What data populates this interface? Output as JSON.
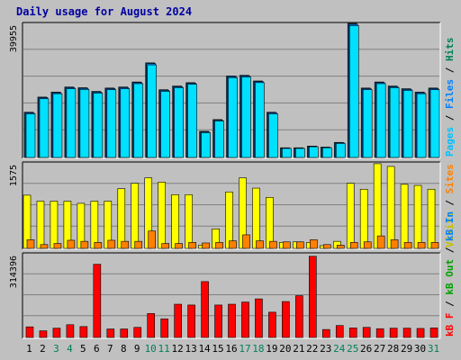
{
  "title": "Daily usage for August 2024",
  "colors": {
    "background": "#c0c0c0",
    "panel": "#c0c0c0",
    "hits": "#00c0ff",
    "files": "#0080ff",
    "pages": "#00e0ff",
    "visits": "#ffff00",
    "sites": "#ff8000",
    "kbin": "#0080ff",
    "kbout": "#00a000",
    "kbf": "#ff0000",
    "title": "#0000a0",
    "weekend_label": "#00805a",
    "weekday_label": "#000000"
  },
  "chart_data": [
    {
      "type": "bar",
      "panel": "hits_files_pages",
      "y_max_label": "39955",
      "ylim": [
        0,
        39955
      ],
      "right_labels": [
        {
          "text": "Pages",
          "color": "#00c0ff"
        },
        {
          "text": " / ",
          "color": "#000000"
        },
        {
          "text": "Files",
          "color": "#0080ff"
        },
        {
          "text": " / ",
          "color": "#000000"
        },
        {
          "text": "Hits",
          "color": "#00805a"
        }
      ],
      "categories": [
        "1",
        "2",
        "3",
        "4",
        "5",
        "6",
        "7",
        "8",
        "9",
        "10",
        "11",
        "12",
        "13",
        "14",
        "15",
        "16",
        "17",
        "18",
        "19",
        "20",
        "21",
        "22",
        "23",
        "24",
        "25",
        "26",
        "27",
        "28",
        "29",
        "30",
        "31"
      ],
      "series": [
        {
          "name": "Hits",
          "values": [
            13500,
            18000,
            19500,
            21000,
            20800,
            19700,
            20700,
            21000,
            22500,
            28200,
            20200,
            21300,
            22300,
            7800,
            11300,
            24300,
            24500,
            22800,
            13500,
            2900,
            2900,
            3400,
            3100,
            4500,
            39955,
            20700,
            22500,
            21300,
            20500,
            19500,
            20700
          ]
        },
        {
          "name": "Files",
          "values": [
            13300,
            17800,
            19300,
            20800,
            20600,
            19500,
            20500,
            20800,
            22300,
            28000,
            20000,
            21100,
            22100,
            7600,
            11100,
            24100,
            24300,
            22600,
            13300,
            2800,
            2800,
            3300,
            3000,
            4400,
            39700,
            20500,
            22300,
            21100,
            20300,
            19300,
            20500
          ]
        },
        {
          "name": "Pages",
          "values": [
            13000,
            17500,
            19000,
            20500,
            20300,
            19200,
            20200,
            20500,
            22000,
            27600,
            19700,
            20800,
            21800,
            7400,
            10900,
            23800,
            24000,
            22300,
            13000,
            2700,
            2700,
            3200,
            2900,
            4200,
            39300,
            20200,
            22000,
            20800,
            20000,
            19000,
            20200
          ]
        }
      ]
    },
    {
      "type": "bar",
      "panel": "visits_sites",
      "y_max_label": "1575",
      "ylim": [
        0,
        1575
      ],
      "right_labels": [
        {
          "text": "Visits",
          "color": "#c0c000"
        },
        {
          "text": " / ",
          "color": "#000000"
        },
        {
          "text": "Sites",
          "color": "#ff8000"
        }
      ],
      "categories": [
        "1",
        "2",
        "3",
        "4",
        "5",
        "6",
        "7",
        "8",
        "9",
        "10",
        "11",
        "12",
        "13",
        "14",
        "15",
        "16",
        "17",
        "18",
        "19",
        "20",
        "21",
        "22",
        "23",
        "24",
        "25",
        "26",
        "27",
        "28",
        "29",
        "30",
        "31"
      ],
      "series": [
        {
          "name": "Visits",
          "values": [
            980,
            870,
            870,
            870,
            830,
            870,
            870,
            1100,
            1200,
            1300,
            1220,
            990,
            990,
            60,
            360,
            1040,
            1300,
            1110,
            940,
            110,
            120,
            110,
            50,
            130,
            1200,
            1090,
            1560,
            1510,
            1180,
            1160,
            1090
          ]
        },
        {
          "name": "Sites",
          "values": [
            160,
            70,
            90,
            150,
            130,
            110,
            150,
            130,
            130,
            320,
            90,
            90,
            110,
            100,
            110,
            140,
            250,
            140,
            130,
            120,
            120,
            160,
            70,
            60,
            110,
            120,
            230,
            160,
            110,
            110,
            110
          ]
        }
      ]
    },
    {
      "type": "bar",
      "panel": "kbytes",
      "y_max_label": "314396",
      "ylim": [
        0,
        314396
      ],
      "right_labels": [
        {
          "text": "kB F",
          "color": "#ff0000"
        },
        {
          "text": " / ",
          "color": "#000000"
        },
        {
          "text": "kB Out",
          "color": "#00a000"
        },
        {
          "text": " / ",
          "color": "#000000"
        },
        {
          "text": "kB In",
          "color": "#0080ff"
        }
      ],
      "categories": [
        "1",
        "2",
        "3",
        "4",
        "5",
        "6",
        "7",
        "8",
        "9",
        "10",
        "11",
        "12",
        "13",
        "14",
        "15",
        "16",
        "17",
        "18",
        "19",
        "20",
        "21",
        "22",
        "23",
        "24",
        "25",
        "26",
        "27",
        "28",
        "29",
        "30",
        "31"
      ],
      "series": [
        {
          "name": "kB F",
          "values": [
            40000,
            25000,
            35000,
            48000,
            41000,
            275000,
            32000,
            32000,
            38000,
            90000,
            70000,
            125000,
            122000,
            210000,
            122000,
            125000,
            133000,
            145000,
            95000,
            135000,
            157000,
            305000,
            30000,
            45000,
            36000,
            38000,
            33000,
            35000,
            35000,
            34000,
            36000
          ]
        }
      ]
    }
  ],
  "x_labels": [
    {
      "text": "1",
      "weekend": false
    },
    {
      "text": "2",
      "weekend": false
    },
    {
      "text": "3",
      "weekend": true
    },
    {
      "text": "4",
      "weekend": true
    },
    {
      "text": "5",
      "weekend": false
    },
    {
      "text": "6",
      "weekend": false
    },
    {
      "text": "7",
      "weekend": false
    },
    {
      "text": "8",
      "weekend": false
    },
    {
      "text": "9",
      "weekend": false
    },
    {
      "text": "10",
      "weekend": true
    },
    {
      "text": "11",
      "weekend": true
    },
    {
      "text": "12",
      "weekend": false
    },
    {
      "text": "13",
      "weekend": false
    },
    {
      "text": "14",
      "weekend": false
    },
    {
      "text": "15",
      "weekend": false
    },
    {
      "text": "16",
      "weekend": false
    },
    {
      "text": "17",
      "weekend": true
    },
    {
      "text": "18",
      "weekend": true
    },
    {
      "text": "19",
      "weekend": false
    },
    {
      "text": "20",
      "weekend": false
    },
    {
      "text": "21",
      "weekend": false
    },
    {
      "text": "22",
      "weekend": false
    },
    {
      "text": "23",
      "weekend": false
    },
    {
      "text": "24",
      "weekend": true
    },
    {
      "text": "25",
      "weekend": true
    },
    {
      "text": "26",
      "weekend": false
    },
    {
      "text": "27",
      "weekend": false
    },
    {
      "text": "28",
      "weekend": false
    },
    {
      "text": "29",
      "weekend": false
    },
    {
      "text": "30",
      "weekend": false
    },
    {
      "text": "31",
      "weekend": true
    }
  ]
}
